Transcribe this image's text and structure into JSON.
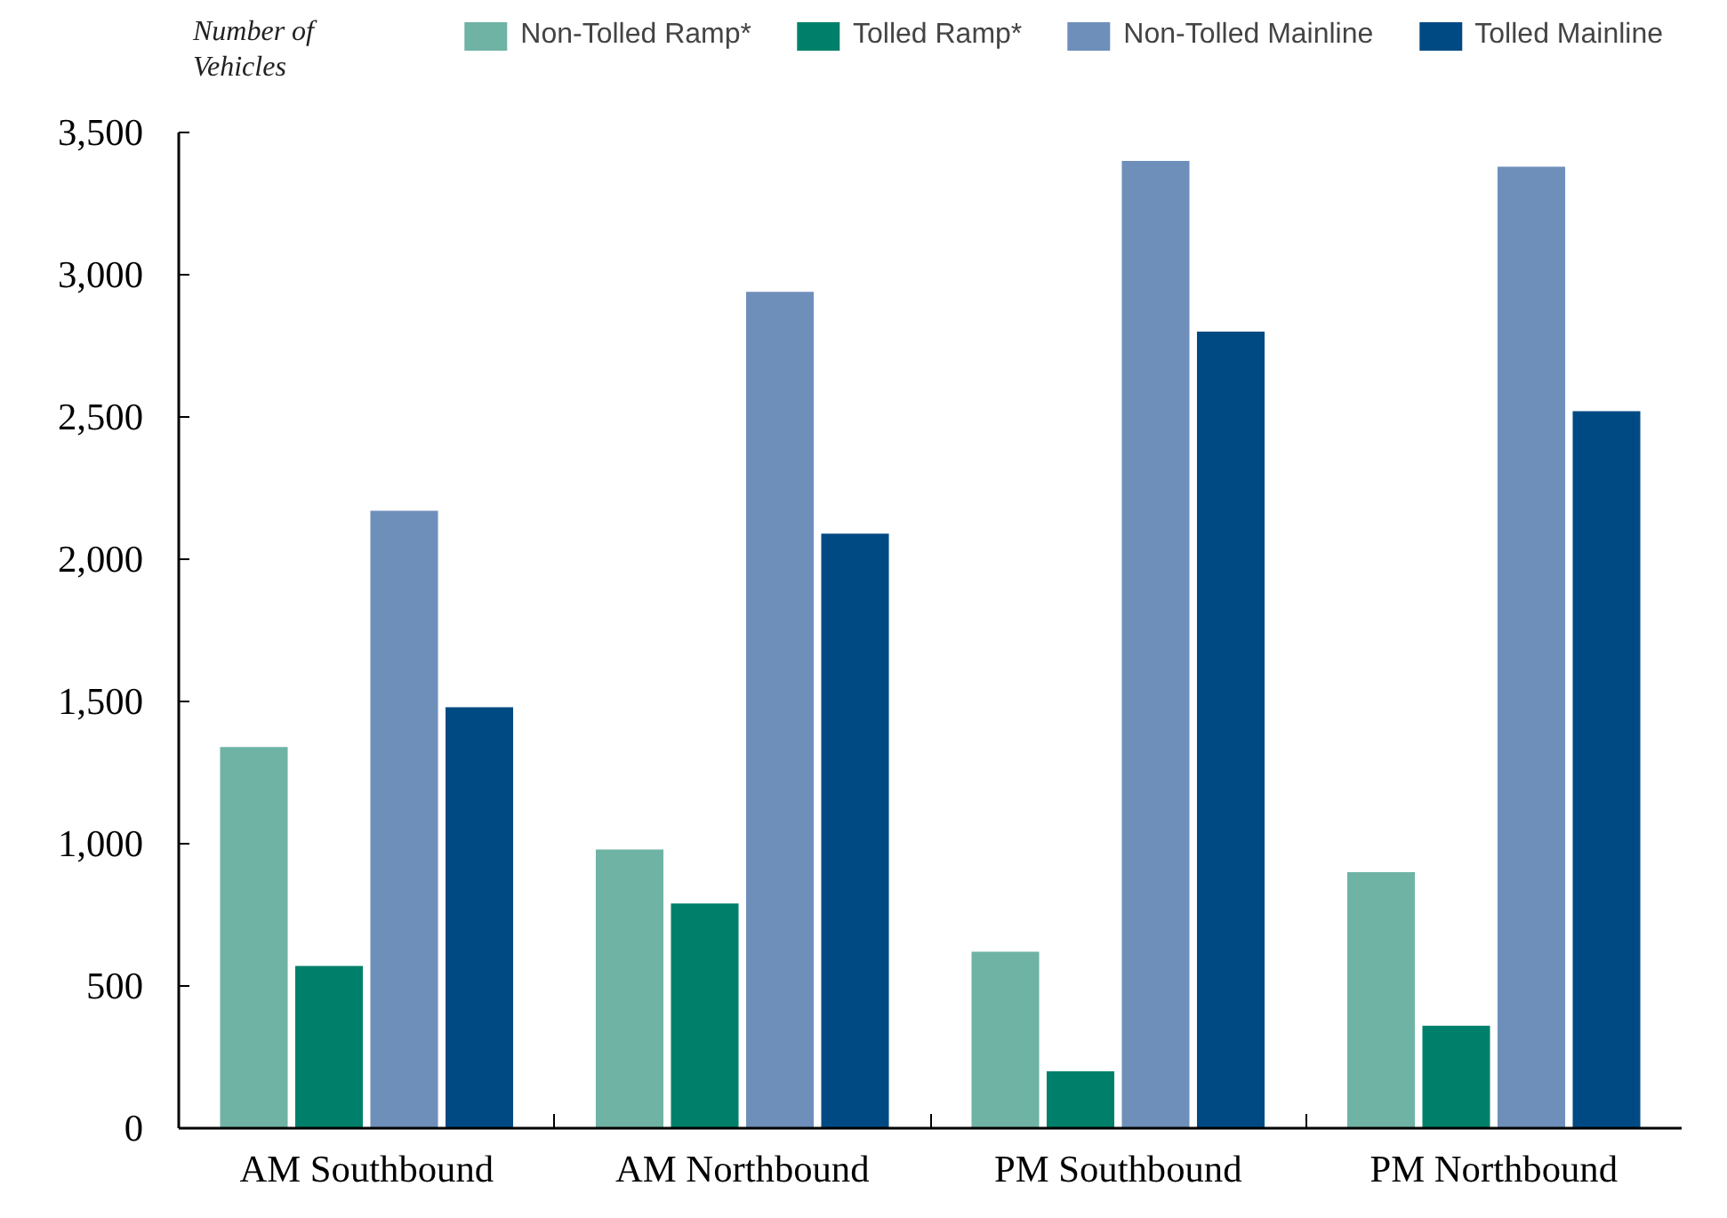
{
  "chart_data": {
    "type": "bar",
    "ylabel": "Number of Vehicles",
    "categories": [
      "AM Southbound",
      "AM Northbound",
      "PM Southbound",
      "PM Northbound"
    ],
    "series": [
      {
        "name": "Non-Tolled Ramp*",
        "color": "#6fb3a5",
        "values": [
          1340,
          980,
          620,
          900
        ]
      },
      {
        "name": "Tolled Ramp*",
        "color": "#00806a",
        "values": [
          570,
          790,
          200,
          360
        ]
      },
      {
        "name": "Non-Tolled Mainline",
        "color": "#6f8fbb",
        "values": [
          2170,
          2940,
          3400,
          3380
        ]
      },
      {
        "name": "Tolled Mainline",
        "color": "#004a84",
        "values": [
          1480,
          2090,
          2800,
          2520
        ]
      }
    ],
    "ylim": [
      0,
      3500
    ],
    "yticks": [
      0,
      {
        "value": 500,
        "label": "500"
      },
      {
        "value": 1000,
        "label": "1,000"
      },
      {
        "value": 1500,
        "label": "1,500"
      },
      {
        "value": 2000,
        "label": "2,000"
      },
      {
        "value": 2500,
        "label": "2,500"
      },
      {
        "value": 3000,
        "label": "3,000"
      },
      {
        "value": 3500,
        "label": "3,500"
      }
    ],
    "grid": false,
    "legend": "top"
  }
}
